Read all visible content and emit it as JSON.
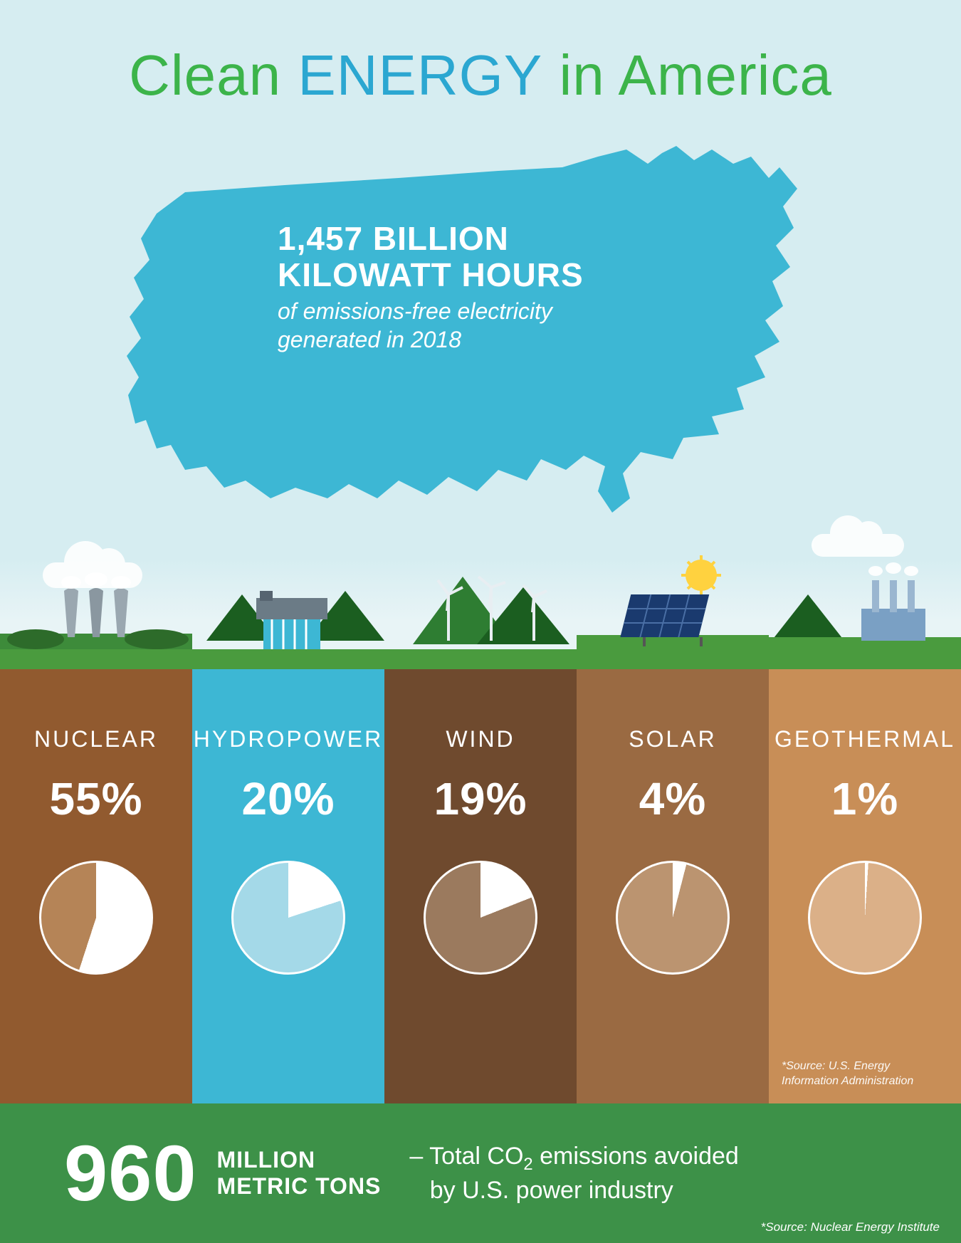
{
  "colors": {
    "bg_sky": "#d6edf1",
    "title_green": "#3cb44a",
    "title_blue": "#2ba7d1",
    "map_fill": "#3db7d4",
    "footer_bg": "#3d9148",
    "white": "#ffffff"
  },
  "title": {
    "part1": "Clean",
    "part2": "ENERGY",
    "part3": "in America",
    "fontsize": 80
  },
  "map_stat": {
    "line1": "1,457 BILLION",
    "line2": "KILOWATT HOURS",
    "sub": "of emissions-free electricity generated in 2018",
    "big_fontsize": 46,
    "sub_fontsize": 32
  },
  "columns": [
    {
      "key": "nuclear",
      "label": "NUCLEAR",
      "pct": "55%",
      "value": 55,
      "col_bg": "#915a2f",
      "pie_bg": "#b58457",
      "pie_fill": "#ffffff"
    },
    {
      "key": "hydro",
      "label": "HYDROPOWER",
      "pct": "20%",
      "value": 20,
      "col_bg": "#3db7d4",
      "pie_bg": "#a4d9e8",
      "pie_fill": "#ffffff"
    },
    {
      "key": "wind",
      "label": "WIND",
      "pct": "19%",
      "value": 19,
      "col_bg": "#6f4a2e",
      "pie_bg": "#9b7a5e",
      "pie_fill": "#ffffff"
    },
    {
      "key": "solar",
      "label": "SOLAR",
      "pct": "4%",
      "value": 4,
      "col_bg": "#9a6a42",
      "pie_bg": "#bb9470",
      "pie_fill": "#ffffff"
    },
    {
      "key": "geothermal",
      "label": "GEOTHERMAL",
      "pct": "1%",
      "value": 1,
      "col_bg": "#c88e57",
      "pie_bg": "#dbb088",
      "pie_fill": "#ffffff"
    }
  ],
  "col_source": "*Source: U.S. Energy Information Administration",
  "footer": {
    "number": "960",
    "unit1": "MILLION",
    "unit2": "METRIC TONS",
    "dash": "–",
    "desc1": "Total CO",
    "desc_sub": "2",
    "desc2": " emissions avoided",
    "desc3": "by U.S. power industry",
    "source": "*Source: Nuclear Energy Institute"
  },
  "typography": {
    "col_label_fontsize": 32,
    "col_pct_fontsize": 64,
    "pie_diameter": 160,
    "footer_num_fontsize": 110
  }
}
